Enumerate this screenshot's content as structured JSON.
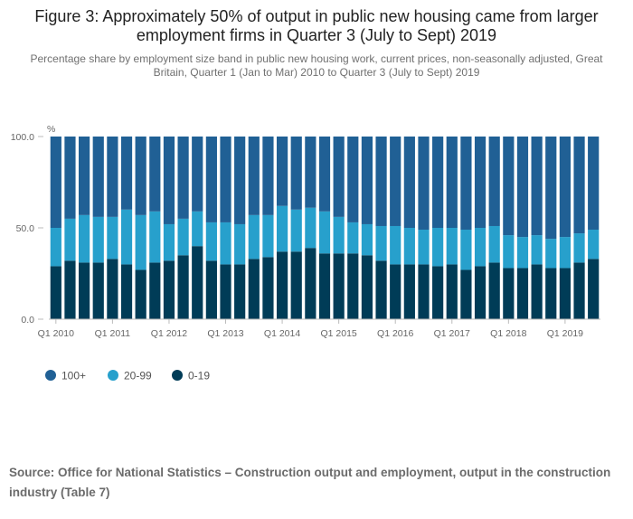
{
  "title": "Figure 3: Approximately 50% of output in public new housing came from larger employment firms in Quarter 3 (July to Sept) 2019",
  "subtitle": "Percentage share by employment size band in public new housing work, current prices, non-seasonally adjusted, Great Britain, Quarter 1 (Jan to Mar) 2010 to Quarter 3 (July to Sept) 2019",
  "source": "Source: Office for National Statistics – Construction output and employment, output in the construction industry (Table 7)",
  "colors": {
    "s100": "#206095",
    "s2099": "#27a0cc",
    "s019": "#003c57"
  },
  "chart_data": {
    "type": "bar",
    "stacked": true,
    "ylabel": "%",
    "ylim": [
      0,
      100
    ],
    "yticks": [
      "0.0",
      "50.0",
      "100.0"
    ],
    "categories": [
      "Q1 2010",
      "Q2 2010",
      "Q3 2010",
      "Q4 2010",
      "Q1 2011",
      "Q2 2011",
      "Q3 2011",
      "Q4 2011",
      "Q1 2012",
      "Q2 2012",
      "Q3 2012",
      "Q4 2012",
      "Q1 2013",
      "Q2 2013",
      "Q3 2013",
      "Q4 2013",
      "Q1 2014",
      "Q2 2014",
      "Q3 2014",
      "Q4 2014",
      "Q1 2015",
      "Q2 2015",
      "Q3 2015",
      "Q4 2015",
      "Q1 2016",
      "Q2 2016",
      "Q3 2016",
      "Q4 2016",
      "Q1 2017",
      "Q2 2017",
      "Q3 2017",
      "Q4 2017",
      "Q1 2018",
      "Q2 2018",
      "Q3 2018",
      "Q4 2018",
      "Q1 2019",
      "Q2 2019",
      "Q3 2019"
    ],
    "xtick_labels": [
      "Q1 2010",
      "Q1 2011",
      "Q1 2012",
      "Q1 2013",
      "Q1 2014",
      "Q1 2015",
      "Q1 2016",
      "Q1 2017",
      "Q1 2018",
      "Q1 2019"
    ],
    "grid": false,
    "legend_position": "bottom-left",
    "series": [
      {
        "name": "0-19",
        "values": [
          29,
          32,
          31,
          31,
          33,
          30,
          27,
          31,
          32,
          35,
          40,
          32,
          30,
          30,
          33,
          34,
          37,
          37,
          39,
          36,
          36,
          36,
          35,
          32,
          30,
          30,
          30,
          29,
          30,
          27,
          29,
          31,
          28,
          28,
          30,
          28,
          28,
          31,
          33
        ]
      },
      {
        "name": "20-99",
        "values": [
          21,
          23,
          26,
          25,
          23,
          30,
          30,
          28,
          20,
          20,
          19,
          21,
          23,
          22,
          24,
          23,
          25,
          23,
          22,
          23,
          20,
          17,
          17,
          19,
          21,
          20,
          19,
          21,
          20,
          22,
          21,
          20,
          18,
          17,
          16,
          16,
          17,
          16,
          16
        ]
      },
      {
        "name": "100+",
        "values": [
          50,
          45,
          43,
          44,
          44,
          40,
          43,
          41,
          48,
          45,
          41,
          47,
          47,
          48,
          43,
          43,
          38,
          40,
          39,
          41,
          44,
          47,
          48,
          49,
          49,
          50,
          51,
          50,
          50,
          51,
          50,
          49,
          54,
          55,
          54,
          56,
          55,
          53,
          51
        ]
      }
    ]
  }
}
